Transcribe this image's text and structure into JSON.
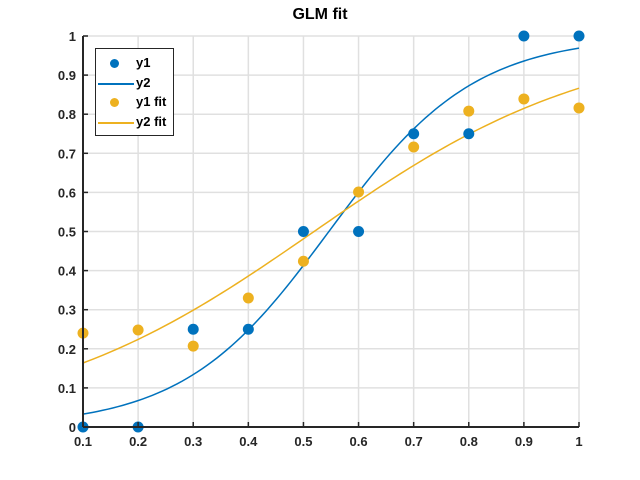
{
  "figure": {
    "title": "GLM fit",
    "colors": {
      "blue": "#0072BD",
      "yellow": "#EDB120",
      "axis": "#262626",
      "grid": "#E0E0E0"
    }
  },
  "legend": {
    "items": [
      {
        "label": "y1",
        "type": "marker",
        "color": "#0072BD"
      },
      {
        "label": "y2",
        "type": "line",
        "color": "#0072BD"
      },
      {
        "label": "y1 fit",
        "type": "marker",
        "color": "#EDB120"
      },
      {
        "label": "y2 fit",
        "type": "line",
        "color": "#EDB120"
      }
    ]
  },
  "chart_data": {
    "type": "scatter",
    "title": "GLM fit",
    "xlabel": "",
    "ylabel": "",
    "xlim": [
      0.1,
      1
    ],
    "ylim": [
      0,
      1
    ],
    "grid": true,
    "legend_position": "northwest",
    "x_ticks": [
      "0.1",
      "0.2",
      "0.3",
      "0.4",
      "0.5",
      "0.6",
      "0.7",
      "0.8",
      "0.9",
      "1"
    ],
    "y_ticks": [
      "0",
      "0.1",
      "0.2",
      "0.3",
      "0.4",
      "0.5",
      "0.6",
      "0.7",
      "0.8",
      "0.9",
      "1"
    ],
    "x": [
      0.1,
      0.2,
      0.3,
      0.4,
      0.5,
      0.6,
      0.7,
      0.8,
      0.9,
      1.0
    ],
    "series": [
      {
        "name": "y1",
        "kind": "markers",
        "color": "#0072BD",
        "values": [
          0,
          0,
          0.25,
          0.25,
          0.5,
          0.5,
          0.75,
          0.75,
          1,
          1
        ]
      },
      {
        "name": "y2",
        "kind": "line",
        "color": "#0072BD",
        "curve": "logistic",
        "slope": 7.58,
        "intercept": -4.14,
        "values": [
          0.033,
          0.069,
          0.137,
          0.255,
          0.417,
          0.59,
          0.744,
          0.857,
          0.927,
          0.966
        ]
      },
      {
        "name": "y1 fit",
        "kind": "markers",
        "color": "#EDB120",
        "values": [
          0.24,
          0.248,
          0.207,
          0.33,
          0.424,
          0.601,
          0.716,
          0.808,
          0.839,
          0.816
        ]
      },
      {
        "name": "y2 fit",
        "kind": "line",
        "color": "#EDB120",
        "curve": "logistic",
        "slope": 3.89,
        "intercept": -2.02,
        "values": [
          0.165,
          0.224,
          0.296,
          0.383,
          0.48,
          0.578,
          0.67,
          0.751,
          0.818,
          0.868
        ]
      }
    ]
  }
}
